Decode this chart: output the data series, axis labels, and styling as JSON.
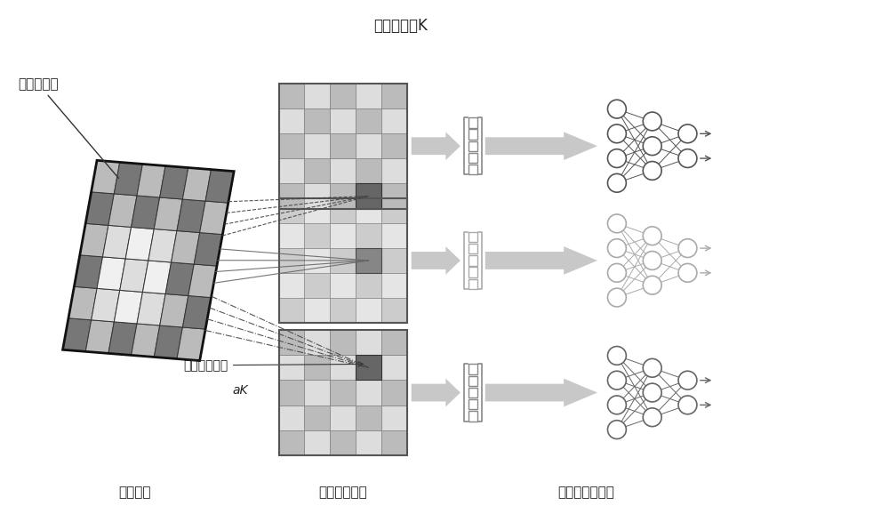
{
  "title": "特征映射块K",
  "label_input": "输入部分",
  "label_feature": "特征映射部分",
  "label_autoenc": "输入自编码部分",
  "label_local": "局部感受野",
  "label_random": "随机输入权重",
  "label_ak": "aK",
  "bg_color": "#ffffff",
  "input_grid_dark": "#777777",
  "input_grid_light": "#bbbbbb",
  "input_grid_white": "#eeeeee",
  "fm_grid_dark": "#bbbbbb",
  "fm_grid_light": "#dddddd",
  "fm_highlight": "#666666",
  "arrow_color": "#c0c0c0",
  "node_color_dark": "#555555",
  "node_color_light": "#999999",
  "line_dark": "#444444",
  "line_light": "#aaaaaa",
  "text_color": "#222222"
}
